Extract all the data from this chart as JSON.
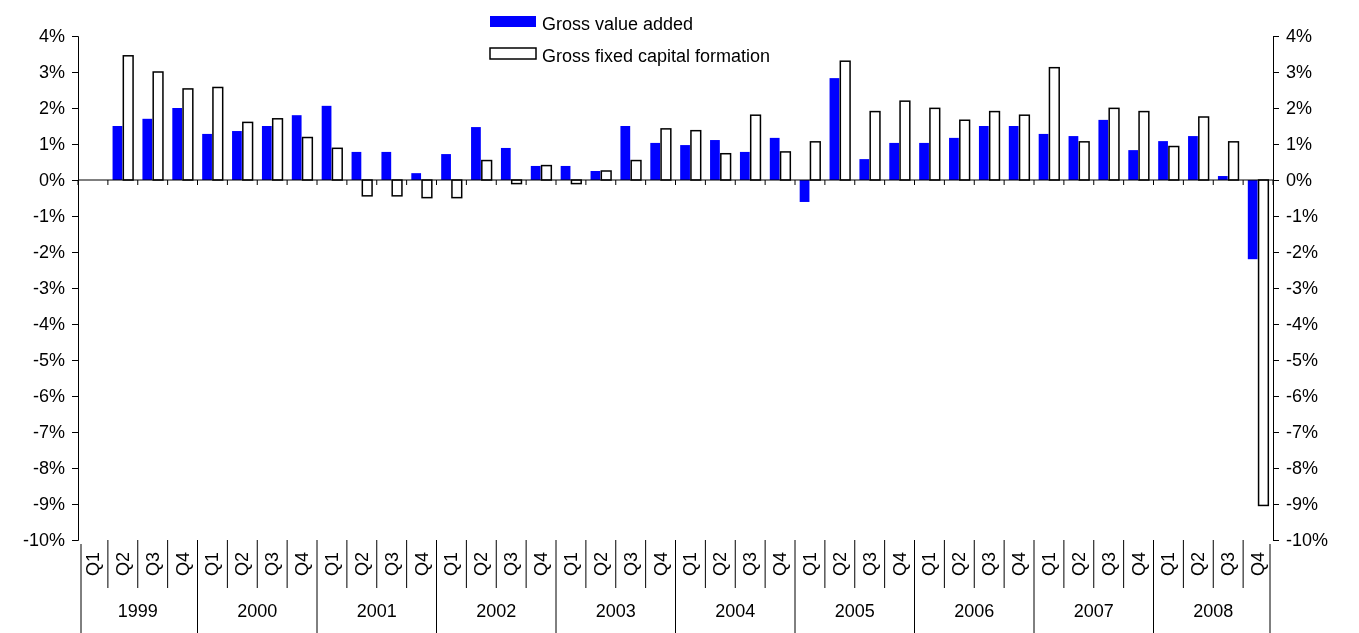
{
  "chart_data": {
    "type": "bar",
    "categories": [
      "Q1",
      "Q2",
      "Q3",
      "Q4",
      "Q1",
      "Q2",
      "Q3",
      "Q4",
      "Q1",
      "Q2",
      "Q3",
      "Q4",
      "Q1",
      "Q2",
      "Q3",
      "Q4",
      "Q1",
      "Q2",
      "Q3",
      "Q4",
      "Q1",
      "Q2",
      "Q3",
      "Q4",
      "Q1",
      "Q2",
      "Q3",
      "Q4",
      "Q1",
      "Q2",
      "Q3",
      "Q4",
      "Q1",
      "Q2",
      "Q3",
      "Q4",
      "Q1",
      "Q2",
      "Q3",
      "Q4"
    ],
    "series": [
      {
        "name": "Gross value added",
        "color": "#0000ff",
        "values": [
          null,
          1.5,
          1.7,
          2.0,
          1.28,
          1.36,
          1.5,
          1.8,
          2.06,
          0.78,
          0.78,
          0.19,
          0.72,
          1.47,
          0.89,
          0.39,
          0.39,
          0.25,
          1.5,
          1.03,
          0.97,
          1.11,
          0.78,
          1.17,
          -0.61,
          2.83,
          0.58,
          1.03,
          1.03,
          1.17,
          1.5,
          1.5,
          1.28,
          1.22,
          1.67,
          0.83,
          1.08,
          1.22,
          0.11,
          -2.2
        ]
      },
      {
        "name": "Gross fixed capital formation",
        "color": "#ffffff",
        "values": [
          null,
          3.45,
          3.0,
          2.53,
          2.57,
          1.6,
          1.7,
          1.18,
          0.88,
          -0.44,
          -0.44,
          -0.49,
          -0.49,
          0.54,
          -0.1,
          0.4,
          -0.1,
          0.25,
          0.54,
          1.42,
          1.37,
          0.73,
          1.8,
          0.78,
          1.06,
          3.3,
          1.9,
          2.19,
          1.99,
          1.66,
          1.9,
          1.8,
          3.12,
          1.06,
          1.99,
          1.9,
          0.93,
          1.75,
          1.06,
          -9.04
        ]
      }
    ],
    "ylim": [
      -10,
      4
    ],
    "yticks": [
      {
        "value": -10,
        "label": "-10%"
      },
      {
        "value": -9,
        "label": "-9%"
      },
      {
        "value": -8,
        "label": "-8%"
      },
      {
        "value": -7,
        "label": "-7%"
      },
      {
        "value": -6,
        "label": "-6%"
      },
      {
        "value": -5,
        "label": "-5%"
      },
      {
        "value": -4,
        "label": "-4%"
      },
      {
        "value": -3,
        "label": "-3%"
      },
      {
        "value": -2,
        "label": "-2%"
      },
      {
        "value": -1,
        "label": "-1%"
      },
      {
        "value": 0,
        "label": "0%"
      },
      {
        "value": 1,
        "label": "1%"
      },
      {
        "value": 2,
        "label": "2%"
      },
      {
        "value": 3,
        "label": "3%"
      },
      {
        "value": 4,
        "label": "4%"
      }
    ],
    "y2lim": [
      -10,
      4
    ],
    "y2ticks": [
      {
        "value": -10,
        "label": "-10%"
      },
      {
        "value": -9,
        "label": "-9%"
      },
      {
        "value": -8,
        "label": "-8%"
      },
      {
        "value": -7,
        "label": "-7%"
      },
      {
        "value": -6,
        "label": "-6%"
      },
      {
        "value": -5,
        "label": "-5%"
      },
      {
        "value": -4,
        "label": "-4%"
      },
      {
        "value": -3,
        "label": "-3%"
      },
      {
        "value": -2,
        "label": "-2%"
      },
      {
        "value": -1,
        "label": "-1%"
      },
      {
        "value": 0,
        "label": "0%"
      },
      {
        "value": 1,
        "label": "1%"
      },
      {
        "value": 2,
        "label": "2%"
      },
      {
        "value": 3,
        "label": "3%"
      },
      {
        "value": 4,
        "label": "4%"
      }
    ],
    "annotations": [
      "1999",
      "2000",
      "2001",
      "2002",
      "2003",
      "2004",
      "2005",
      "2006",
      "2007",
      "2008"
    ],
    "legend": "top"
  }
}
